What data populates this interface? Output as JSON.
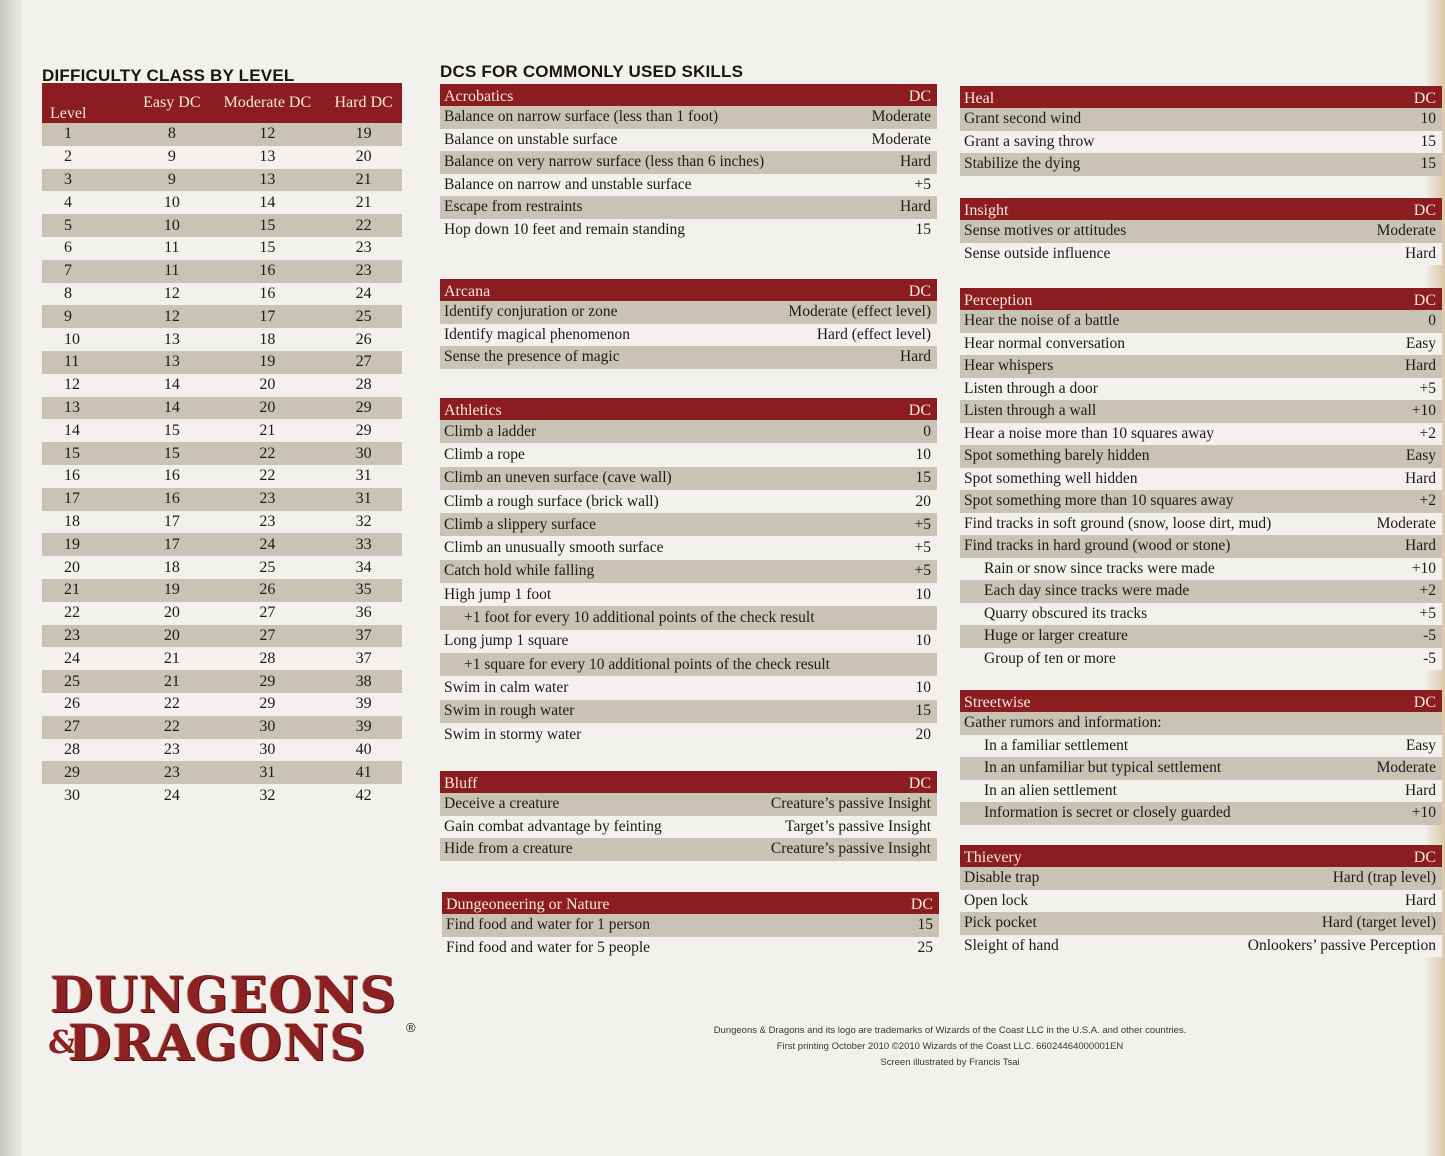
{
  "colors": {
    "header": "#8b1c1f",
    "header_text": "#f4e9df",
    "stripe": "#c9c3b6",
    "paper": "#f2f1ee"
  },
  "level_table": {
    "title": "DIFFICULTY CLASS BY LEVEL",
    "columns": [
      "Level",
      "Easy DC",
      "Moderate DC",
      "Hard DC"
    ],
    "rows": [
      [
        "1",
        "8",
        "12",
        "19"
      ],
      [
        "2",
        "9",
        "13",
        "20"
      ],
      [
        "3",
        "9",
        "13",
        "21"
      ],
      [
        "4",
        "10",
        "14",
        "21"
      ],
      [
        "5",
        "10",
        "15",
        "22"
      ],
      [
        "6",
        "11",
        "15",
        "23"
      ],
      [
        "7",
        "11",
        "16",
        "23"
      ],
      [
        "8",
        "12",
        "16",
        "24"
      ],
      [
        "9",
        "12",
        "17",
        "25"
      ],
      [
        "10",
        "13",
        "18",
        "26"
      ],
      [
        "11",
        "13",
        "19",
        "27"
      ],
      [
        "12",
        "14",
        "20",
        "28"
      ],
      [
        "13",
        "14",
        "20",
        "29"
      ],
      [
        "14",
        "15",
        "21",
        "29"
      ],
      [
        "15",
        "15",
        "22",
        "30"
      ],
      [
        "16",
        "16",
        "22",
        "31"
      ],
      [
        "17",
        "16",
        "23",
        "31"
      ],
      [
        "18",
        "17",
        "23",
        "32"
      ],
      [
        "19",
        "17",
        "24",
        "33"
      ],
      [
        "20",
        "18",
        "25",
        "34"
      ],
      [
        "21",
        "19",
        "26",
        "35"
      ],
      [
        "22",
        "20",
        "27",
        "36"
      ],
      [
        "23",
        "20",
        "27",
        "37"
      ],
      [
        "24",
        "21",
        "28",
        "37"
      ],
      [
        "25",
        "21",
        "29",
        "38"
      ],
      [
        "26",
        "22",
        "29",
        "39"
      ],
      [
        "27",
        "22",
        "30",
        "39"
      ],
      [
        "28",
        "23",
        "30",
        "40"
      ],
      [
        "29",
        "23",
        "31",
        "41"
      ],
      [
        "30",
        "24",
        "32",
        "42"
      ]
    ]
  },
  "skills_title": "DCS FOR COMMONLY USED SKILLS",
  "skills": [
    {
      "name": "Acrobatics",
      "dc": "DC",
      "rows": [
        [
          "Balance on narrow surface (less than 1 foot)",
          "Moderate"
        ],
        [
          "Balance on unstable surface",
          "Moderate"
        ],
        [
          "Balance on very narrow surface (less than 6 inches)",
          "Hard"
        ],
        [
          "Balance on narrow and unstable surface",
          "+5"
        ],
        [
          "Escape from restraints",
          "Hard"
        ],
        [
          "Hop down 10 feet and remain standing",
          "15"
        ]
      ]
    },
    {
      "name": "Arcana",
      "dc": "DC",
      "rows": [
        [
          "Identify conjuration or zone",
          "Moderate (effect level)"
        ],
        [
          "Identify magical phenomenon",
          "Hard (effect level)"
        ],
        [
          "Sense the presence of magic",
          "Hard"
        ]
      ]
    },
    {
      "name": "Athletics",
      "dc": "DC",
      "rows": [
        [
          "Climb a ladder",
          "0"
        ],
        [
          "Climb a rope",
          "10"
        ],
        [
          "Climb an uneven surface (cave wall)",
          "15"
        ],
        [
          "Climb a rough surface (brick wall)",
          "20"
        ],
        [
          "Climb a slippery surface",
          "+5"
        ],
        [
          "Climb an unusually smooth surface",
          "+5"
        ],
        [
          "Catch hold while falling",
          "+5"
        ],
        [
          "High jump 1 foot",
          "10"
        ],
        [
          "+1 foot for every 10 additional points of the check result",
          ""
        ],
        [
          "Long jump 1 square",
          "10"
        ],
        [
          "+1 square for every 10 additional points of the check result",
          ""
        ],
        [
          "Swim in calm water",
          "10"
        ],
        [
          "Swim in rough water",
          "15"
        ],
        [
          "Swim in stormy water",
          "20"
        ]
      ]
    },
    {
      "name": "Bluff",
      "dc": "DC",
      "rows": [
        [
          "Deceive a creature",
          "Creature’s passive Insight"
        ],
        [
          "Gain combat advantage by feinting",
          "Target’s passive Insight"
        ],
        [
          "Hide from a creature",
          "Creature’s passive Insight"
        ]
      ]
    },
    {
      "name": "Dungeoneering or Nature",
      "dc": "DC",
      "rows": [
        [
          "Find food and water for 1 person",
          "15"
        ],
        [
          "Find food and water for 5 people",
          "25"
        ]
      ]
    },
    {
      "name": "Heal",
      "dc": "DC",
      "rows": [
        [
          "Grant second wind",
          "10"
        ],
        [
          "Grant a saving throw",
          "15"
        ],
        [
          "Stabilize the dying",
          "15"
        ]
      ]
    },
    {
      "name": "Insight",
      "dc": "DC",
      "rows": [
        [
          "Sense motives or attitudes",
          "Moderate"
        ],
        [
          "Sense outside influence",
          "Hard"
        ]
      ]
    },
    {
      "name": "Perception",
      "dc": "DC",
      "rows": [
        [
          "Hear the noise of a battle",
          "0"
        ],
        [
          "Hear normal conversation",
          "Easy"
        ],
        [
          "Hear whispers",
          "Hard"
        ],
        [
          "Listen through a door",
          "+5"
        ],
        [
          "Listen through a wall",
          "+10"
        ],
        [
          "Hear a noise more than 10 squares away",
          "+2"
        ],
        [
          "Spot something barely hidden",
          "Easy"
        ],
        [
          "Spot something well hidden",
          "Hard"
        ],
        [
          "Spot something more than 10 squares away",
          "+2"
        ],
        [
          "Find tracks in soft ground (snow, loose dirt, mud)",
          "Moderate"
        ],
        [
          "Find tracks in hard ground (wood or stone)",
          "Hard"
        ],
        [
          "Rain or snow since tracks were made",
          "+10"
        ],
        [
          "Each day since tracks were made",
          "+2"
        ],
        [
          "Quarry obscured its tracks",
          "+5"
        ],
        [
          "Huge or larger creature",
          "-5"
        ],
        [
          "Group of ten or more",
          "-5"
        ]
      ]
    },
    {
      "name": "Streetwise",
      "dc": "DC",
      "rows": [
        [
          "Gather rumors and information:",
          ""
        ],
        [
          "In a familiar settlement",
          "Easy"
        ],
        [
          "In an unfamiliar but typical settlement",
          "Moderate"
        ],
        [
          "In an alien settlement",
          "Hard"
        ],
        [
          "Information is secret or closely guarded",
          "+10"
        ]
      ]
    },
    {
      "name": "Thievery",
      "dc": "DC",
      "rows": [
        [
          "Disable trap",
          "Hard (trap level)"
        ],
        [
          "Open lock",
          "Hard"
        ],
        [
          "Pick pocket",
          "Hard (target level)"
        ],
        [
          "Sleight of hand",
          "Onlookers’ passive Perception"
        ]
      ]
    }
  ],
  "logo": {
    "line1": "DUNGEONS",
    "amp": "&",
    "line2": "DRAGONS",
    "reg": "®"
  },
  "credits": [
    "Dungeons & Dragons and its logo are trademarks of Wizards of the Coast LLC in the U.S.A. and other countries.",
    "First printing October 2010 ©2010 Wizards of the Coast LLC.   66024464000001EN",
    "Screen illustrated by Francis Tsai"
  ]
}
